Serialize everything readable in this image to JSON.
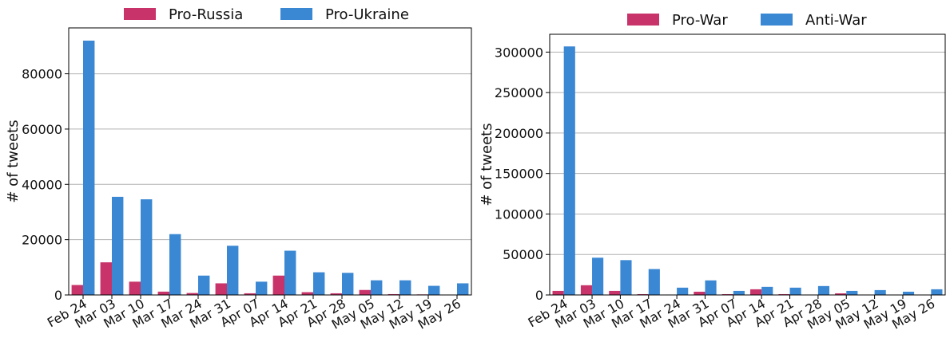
{
  "chart_data": [
    {
      "type": "bar",
      "ylabel": "# of tweets",
      "categories": [
        "Feb 24",
        "Mar 03",
        "Mar 10",
        "Mar 17",
        "Mar 24",
        "Mar 31",
        "Apr 07",
        "Apr 14",
        "Apr 21",
        "Apr 28",
        "May 05",
        "May 12",
        "May 19",
        "May 26"
      ],
      "series": [
        {
          "name": "Pro-Russia",
          "color": "#c8336a",
          "values": [
            3600,
            11800,
            4800,
            1200,
            700,
            4200,
            600,
            7000,
            1000,
            600,
            1800,
            300,
            200,
            100
          ]
        },
        {
          "name": "Pro-Ukraine",
          "color": "#3a87d3",
          "values": [
            92000,
            35500,
            34600,
            22000,
            7000,
            17800,
            4800,
            16000,
            8200,
            8000,
            5300,
            5300,
            3300,
            4200
          ]
        }
      ],
      "ylim": [
        0,
        96600
      ],
      "yticks": [
        0,
        20000,
        40000,
        60000,
        80000
      ],
      "grid": true
    },
    {
      "type": "bar",
      "ylabel": "# of tweets",
      "categories": [
        "Feb 24",
        "Mar 03",
        "Mar 10",
        "Mar 17",
        "Mar 24",
        "Mar 31",
        "Apr 07",
        "Apr 14",
        "Apr 21",
        "Apr 28",
        "May 05",
        "May 12",
        "May 19",
        "May 26"
      ],
      "series": [
        {
          "name": "Pro-War",
          "color": "#c8336a",
          "values": [
            5000,
            12000,
            5000,
            1000,
            500,
            4000,
            1000,
            7000,
            1000,
            500,
            2000,
            300,
            200,
            200
          ]
        },
        {
          "name": "Anti-War",
          "color": "#3a87d3",
          "values": [
            307000,
            46000,
            43000,
            32000,
            9000,
            18000,
            5000,
            10000,
            9000,
            11000,
            5000,
            6000,
            4000,
            7000
          ]
        }
      ],
      "ylim": [
        0,
        322000
      ],
      "yticks": [
        0,
        50000,
        100000,
        150000,
        200000,
        250000,
        300000
      ],
      "grid": true
    }
  ]
}
